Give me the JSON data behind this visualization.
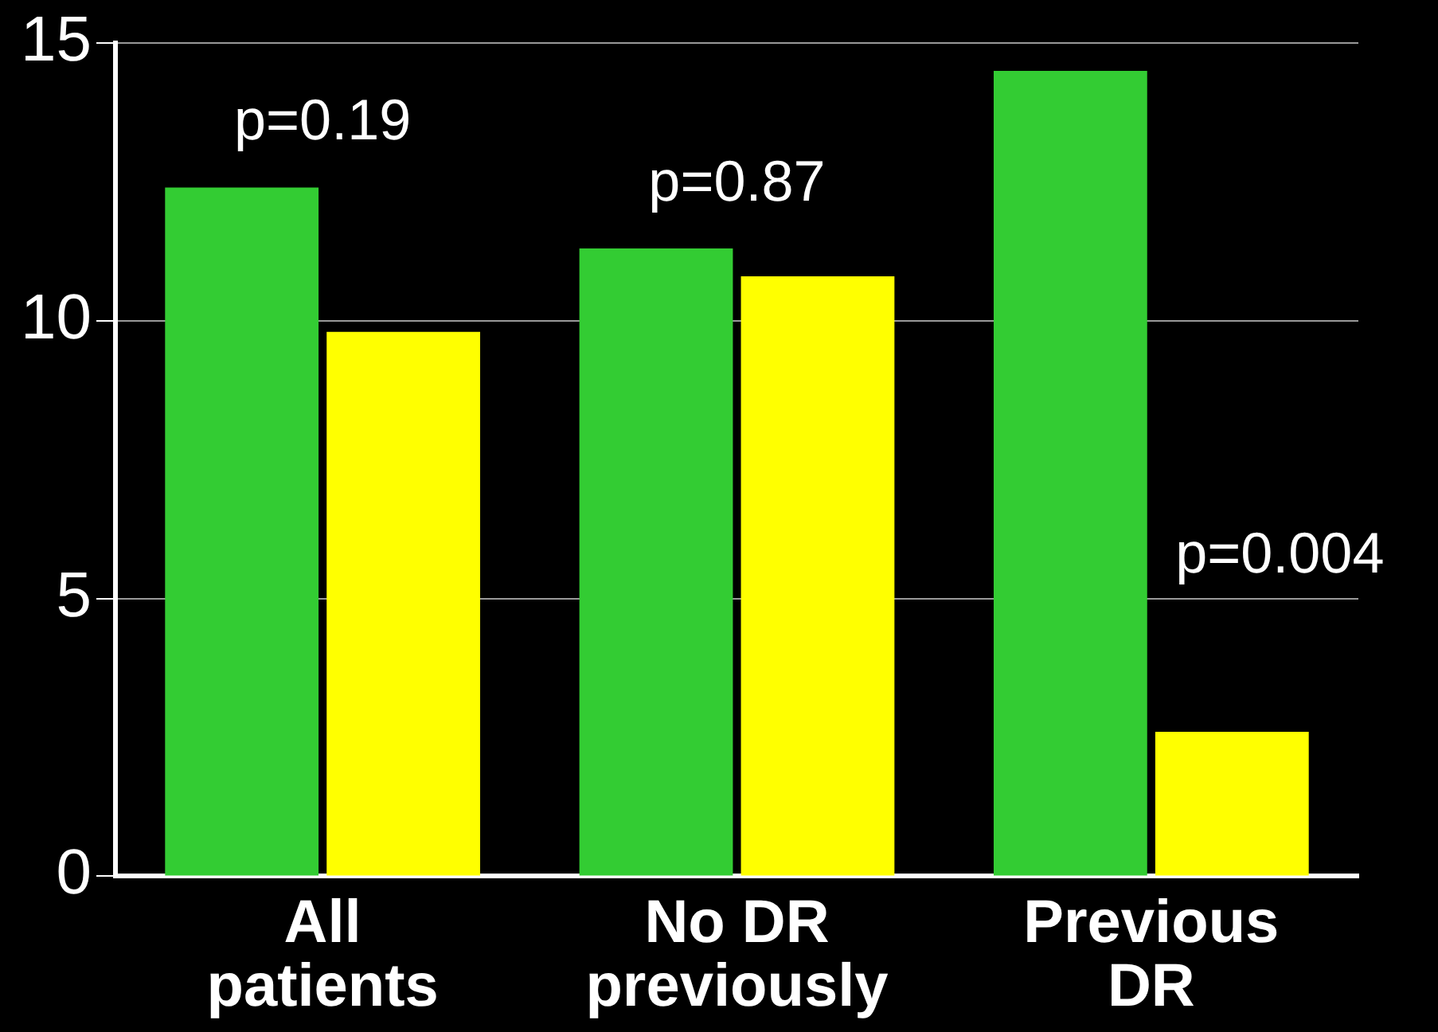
{
  "chart_data": {
    "type": "bar",
    "categories": [
      "All patients",
      "No DR previously",
      "Previous DR"
    ],
    "series": [
      {
        "color": "#33cc33",
        "values": [
          12.4,
          11.3,
          14.5
        ]
      },
      {
        "color": "#ffff00",
        "values": [
          9.8,
          10.8,
          2.6
        ]
      }
    ],
    "ylim": [
      0,
      15
    ],
    "yticks": [
      0,
      5,
      10,
      15
    ],
    "grid": "y",
    "legend": false,
    "annotations": [
      "p=0.19",
      "p=0.87",
      "p=0.004"
    ]
  }
}
